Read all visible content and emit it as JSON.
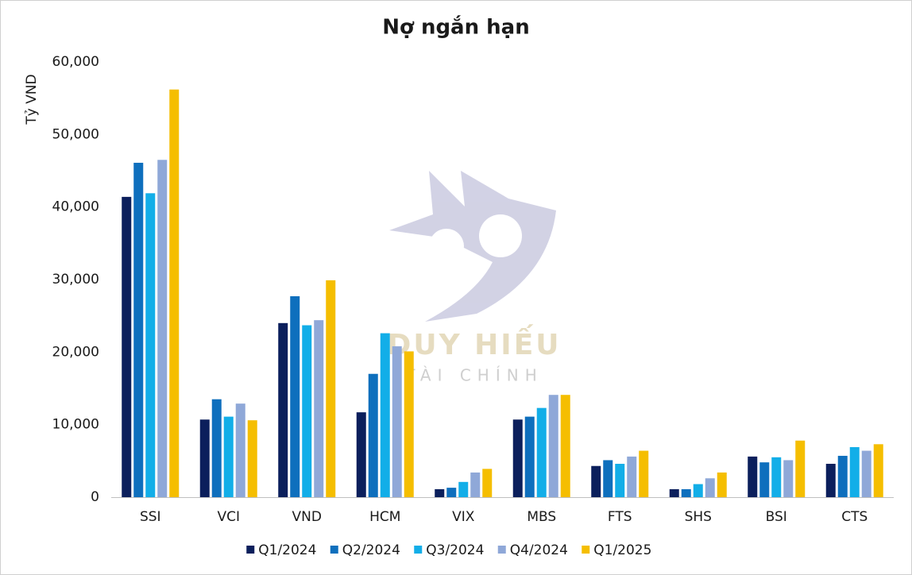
{
  "chart_data": {
    "type": "bar",
    "title": "Nợ ngắn hạn",
    "y_label": "Tỷ VND",
    "categories": [
      "SSI",
      "VCI",
      "VND",
      "HCM",
      "VIX",
      "MBS",
      "FTS",
      "SHS",
      "BSI",
      "CTS"
    ],
    "series": [
      {
        "name": "Q1/2024",
        "color": "#0b1f5c",
        "values": [
          41400,
          10700,
          24000,
          11700,
          1100,
          10700,
          4300,
          1100,
          5600,
          4600
        ]
      },
      {
        "name": "Q2/2024",
        "color": "#0e6fbd",
        "values": [
          46100,
          13500,
          27700,
          17000,
          1300,
          11100,
          5100,
          1100,
          4800,
          5700
        ]
      },
      {
        "name": "Q3/2024",
        "color": "#12aee8",
        "values": [
          41900,
          11100,
          23700,
          22600,
          2100,
          12300,
          4600,
          1800,
          5500,
          6900
        ]
      },
      {
        "name": "Q4/2024",
        "color": "#8fa8d8",
        "values": [
          46500,
          12900,
          24400,
          20800,
          3400,
          14100,
          5600,
          2600,
          5100,
          6400
        ]
      },
      {
        "name": "Q1/2025",
        "color": "#f5be00",
        "values": [
          56200,
          10600,
          29900,
          20100,
          3900,
          14100,
          6400,
          3400,
          7800,
          7300
        ]
      }
    ],
    "ylim": [
      0,
      60000
    ],
    "yticks": [
      0,
      {
        "value": 10000,
        "label": "10,000"
      },
      {
        "value": 20000,
        "label": "20,000"
      },
      {
        "value": 30000,
        "label": "30,000"
      },
      {
        "value": 40000,
        "label": "40,000"
      },
      {
        "value": 50000,
        "label": "50,000"
      },
      {
        "value": 60000,
        "label": "60,000"
      }
    ],
    "grid": false,
    "legend": "bottom"
  },
  "watermark": {
    "title": "DUY HIẾU",
    "subtitle": "TÀI CHÍNH"
  }
}
